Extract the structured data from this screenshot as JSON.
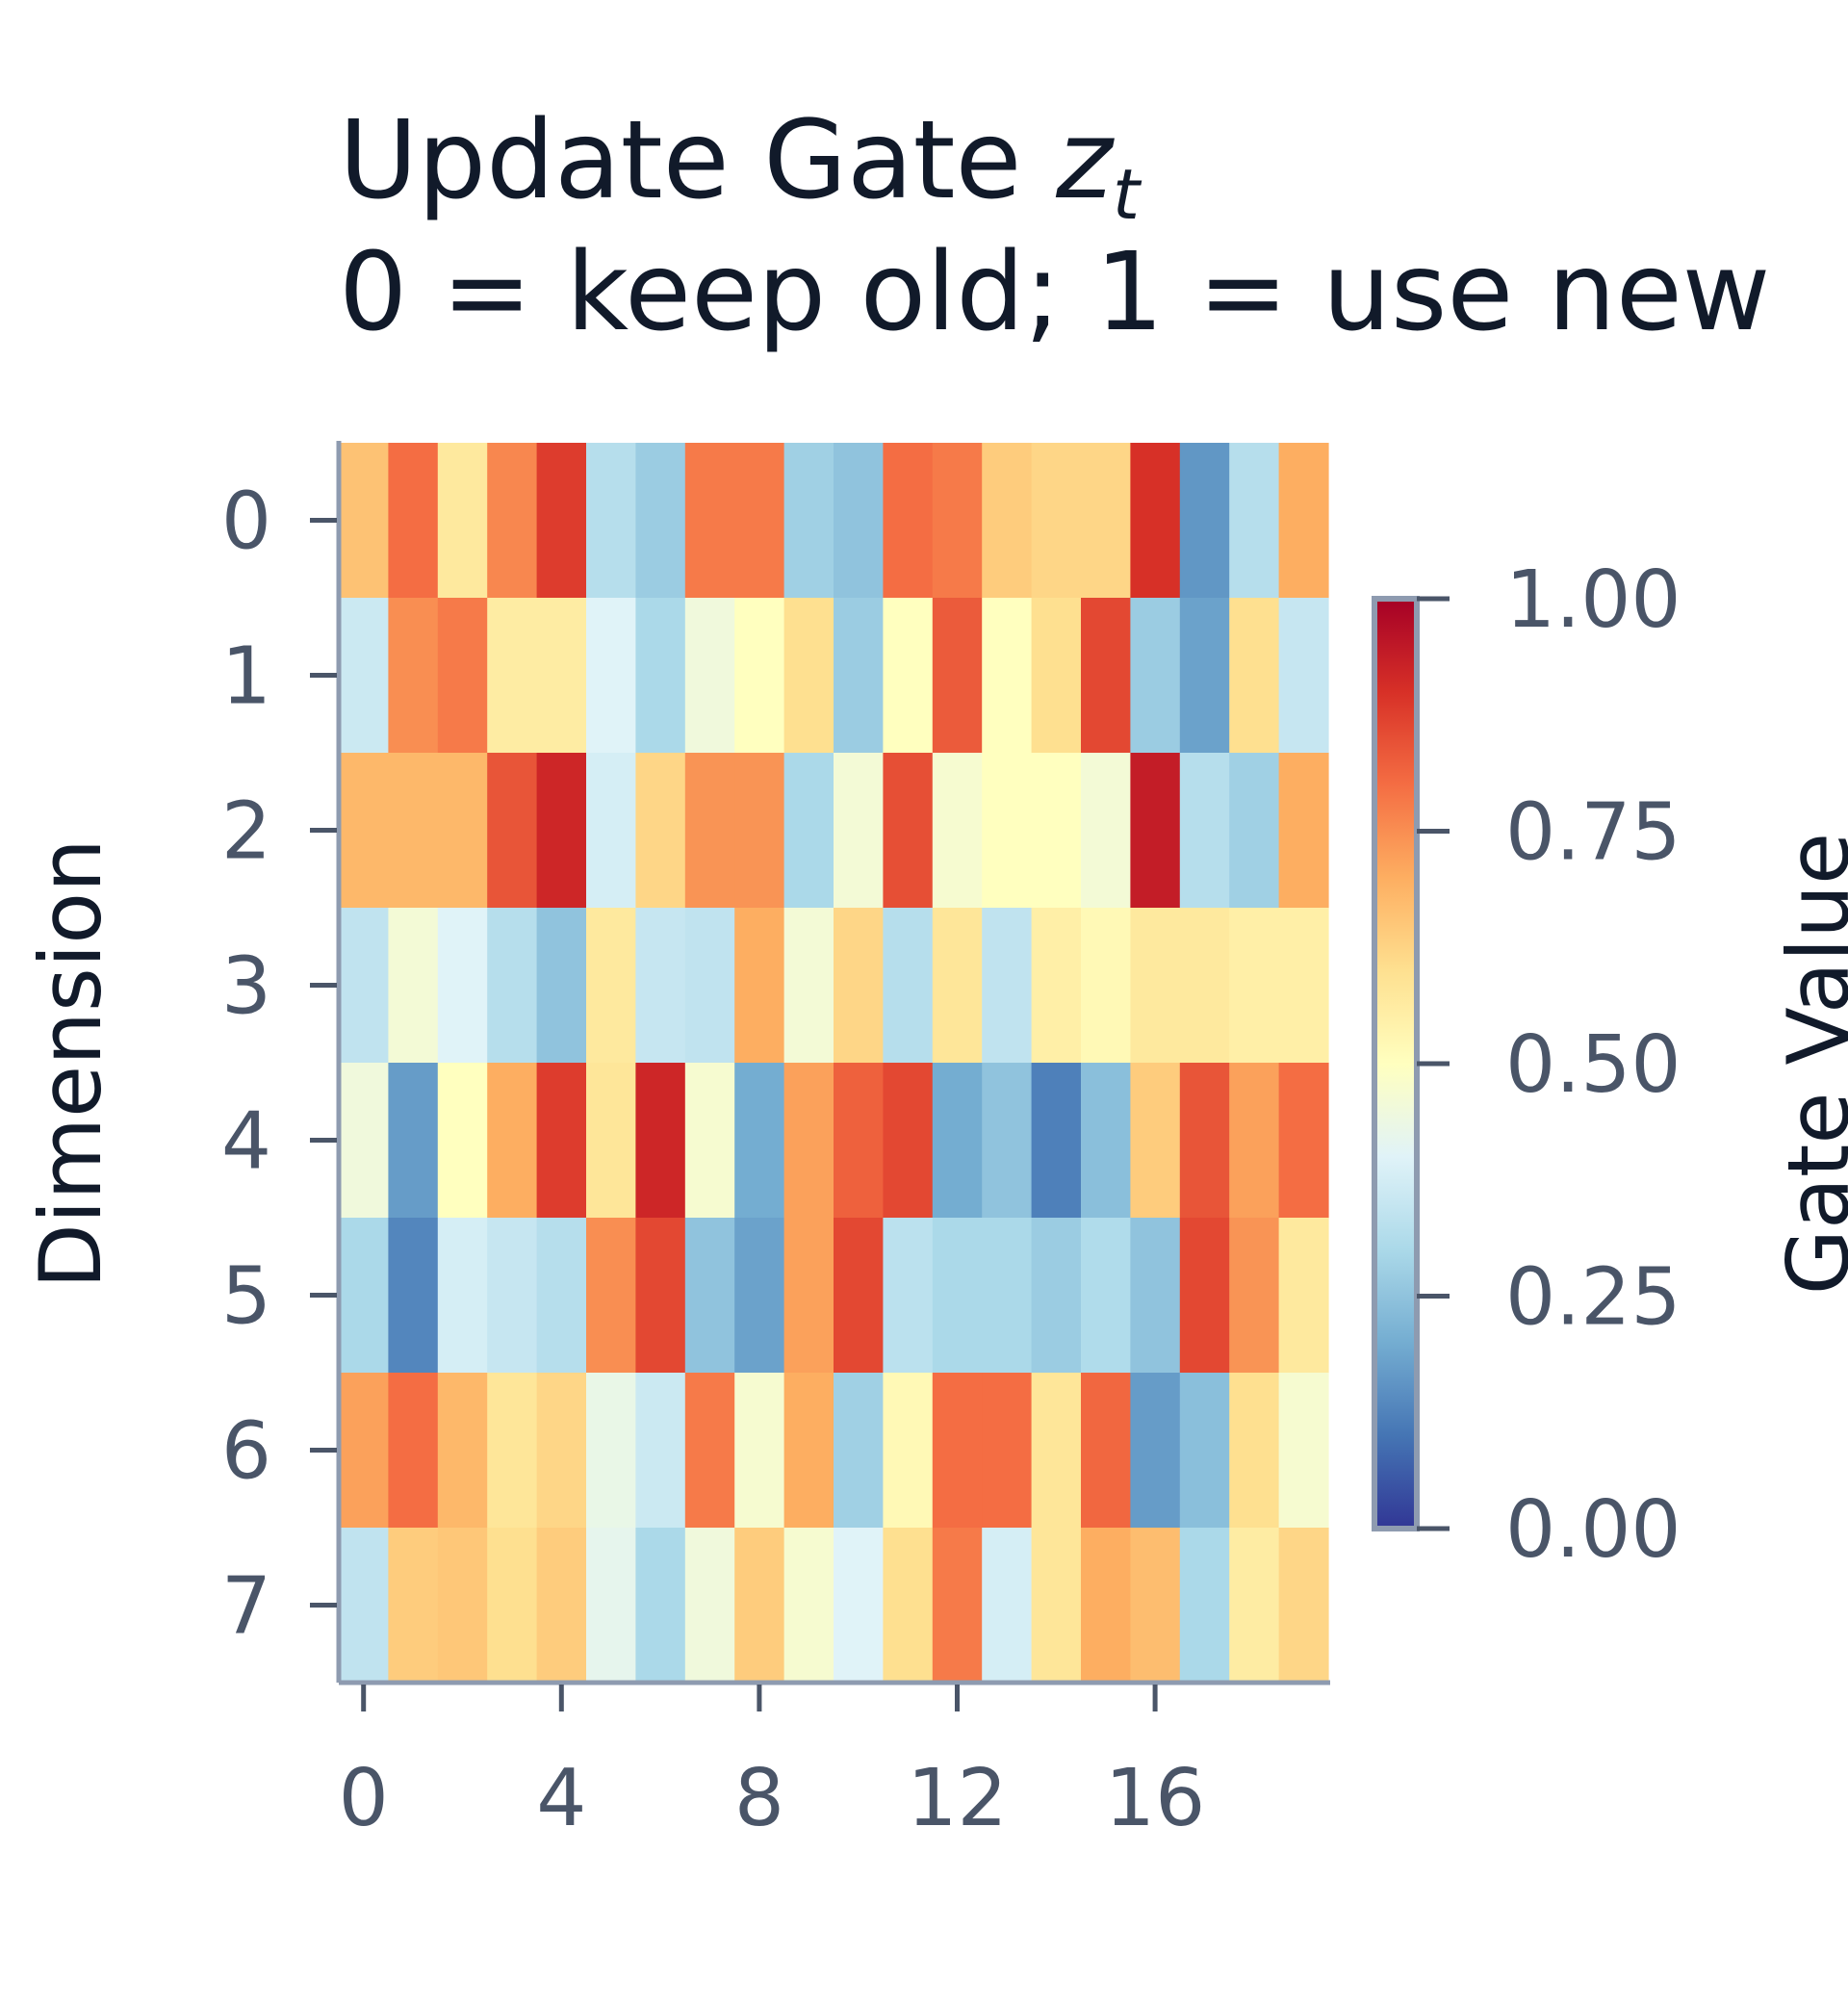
{
  "chart_data": {
    "type": "heatmap",
    "title_main": "Update Gate ",
    "title_var": "z",
    "title_sub_var": "t",
    "subtitle": "0 = keep old; 1 = use new",
    "ylabel": "Dimension",
    "xlabel": "",
    "colorbar_label": "Gate Value",
    "colormap": "RdYlBu_r",
    "vmin": 0,
    "vmax": 1,
    "x_ticks": [
      0,
      4,
      8,
      12,
      16
    ],
    "y_ticks": [
      0,
      1,
      2,
      3,
      4,
      5,
      6,
      7
    ],
    "colorbar_ticks": [
      "0.00",
      "0.25",
      "0.50",
      "0.75",
      "1.00"
    ],
    "grid": false,
    "n_steps": 20,
    "n_dims": 8,
    "values": [
      [
        0.66,
        0.8,
        0.57,
        0.76,
        0.88,
        0.32,
        0.27,
        0.78,
        0.78,
        0.28,
        0.25,
        0.8,
        0.78,
        0.64,
        0.62,
        0.62,
        0.9,
        0.16,
        0.32,
        0.7
      ],
      [
        0.36,
        0.75,
        0.78,
        0.56,
        0.56,
        0.4,
        0.3,
        0.45,
        0.5,
        0.6,
        0.27,
        0.5,
        0.83,
        0.5,
        0.6,
        0.86,
        0.27,
        0.18,
        0.6,
        0.35
      ],
      [
        0.68,
        0.68,
        0.68,
        0.84,
        0.92,
        0.38,
        0.62,
        0.74,
        0.74,
        0.3,
        0.46,
        0.85,
        0.47,
        0.5,
        0.5,
        0.46,
        0.94,
        0.32,
        0.28,
        0.7
      ],
      [
        0.34,
        0.46,
        0.4,
        0.32,
        0.25,
        0.57,
        0.35,
        0.34,
        0.7,
        0.46,
        0.62,
        0.32,
        0.58,
        0.34,
        0.55,
        0.52,
        0.57,
        0.57,
        0.55,
        0.55
      ],
      [
        0.45,
        0.17,
        0.5,
        0.7,
        0.88,
        0.58,
        0.92,
        0.47,
        0.2,
        0.72,
        0.82,
        0.86,
        0.2,
        0.25,
        0.12,
        0.24,
        0.64,
        0.84,
        0.72,
        0.8
      ],
      [
        0.3,
        0.13,
        0.38,
        0.35,
        0.32,
        0.75,
        0.86,
        0.25,
        0.18,
        0.72,
        0.86,
        0.33,
        0.3,
        0.3,
        0.27,
        0.31,
        0.25,
        0.86,
        0.74,
        0.57
      ],
      [
        0.72,
        0.8,
        0.68,
        0.58,
        0.62,
        0.43,
        0.36,
        0.78,
        0.47,
        0.7,
        0.28,
        0.52,
        0.8,
        0.8,
        0.58,
        0.81,
        0.17,
        0.24,
        0.6,
        0.47
      ],
      [
        0.34,
        0.64,
        0.65,
        0.6,
        0.64,
        0.42,
        0.3,
        0.45,
        0.64,
        0.47,
        0.4,
        0.6,
        0.78,
        0.38,
        0.58,
        0.7,
        0.67,
        0.3,
        0.56,
        0.62
      ]
    ]
  }
}
